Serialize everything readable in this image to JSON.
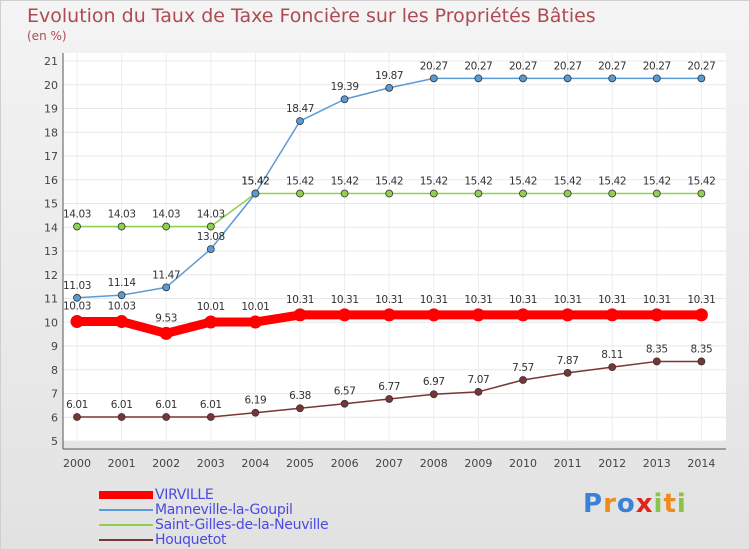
{
  "chart_data": {
    "type": "line",
    "title": "Evolution du Taux de Taxe Foncière sur les Propriétés Bâties",
    "ylabel": "(en %)",
    "xlabel": "",
    "categories": [
      "2000",
      "2001",
      "2002",
      "2003",
      "2004",
      "2005",
      "2006",
      "2007",
      "2008",
      "2009",
      "2010",
      "2011",
      "2012",
      "2013",
      "2014"
    ],
    "ylim": [
      5,
      21
    ],
    "yticks": [
      "5",
      "6",
      "7",
      "8",
      "9",
      "10",
      "11",
      "12",
      "13",
      "14",
      "15",
      "16",
      "17",
      "18",
      "19",
      "20",
      "21"
    ],
    "series": [
      {
        "name": "VIRVILLE",
        "color": "#ff0000",
        "values": [
          10.03,
          10.03,
          9.53,
          10.01,
          10.01,
          10.31,
          10.31,
          10.31,
          10.31,
          10.31,
          10.31,
          10.31,
          10.31,
          10.31,
          10.31
        ],
        "labels": [
          "10.03",
          "10.03",
          "9.53",
          "10.01",
          "10.01",
          "10.31",
          "10.31",
          "10.31",
          "10.31",
          "10.31",
          "10.31",
          "10.31",
          "10.31",
          "10.31",
          "10.31"
        ]
      },
      {
        "name": "Manneville-la-Goupil",
        "color": "#5b9bd5",
        "values": [
          11.03,
          11.14,
          11.47,
          13.08,
          15.42,
          18.47,
          19.39,
          19.87,
          20.27,
          20.27,
          20.27,
          20.27,
          20.27,
          20.27,
          20.27
        ],
        "labels": [
          "11.03",
          "11.14",
          "11.47",
          "13.08",
          "15.42",
          "18.47",
          "19.39",
          "19.87",
          "20.27",
          "20.27",
          "20.27",
          "20.27",
          "20.27",
          "20.27",
          "20.27"
        ]
      },
      {
        "name": "Saint-Gilles-de-la-Neuville",
        "color": "#8fd14f",
        "values": [
          14.03,
          14.03,
          14.03,
          14.03,
          15.42,
          15.42,
          15.42,
          15.42,
          15.42,
          15.42,
          15.42,
          15.42,
          15.42,
          15.42,
          15.42
        ],
        "labels": [
          "14.03",
          "14.03",
          "14.03",
          "14.03",
          "15.42",
          "15.42",
          "15.42",
          "15.42",
          "15.42",
          "15.42",
          "15.42",
          "15.42",
          "15.42",
          "15.42",
          "15.42"
        ]
      },
      {
        "name": "Houquetot",
        "color": "#7b3535",
        "values": [
          6.01,
          6.01,
          6.01,
          6.01,
          6.19,
          6.38,
          6.57,
          6.77,
          6.97,
          7.07,
          7.57,
          7.87,
          8.11,
          8.35,
          8.35
        ],
        "labels": [
          "6.01",
          "6.01",
          "6.01",
          "6.01",
          "6.19",
          "6.38",
          "6.57",
          "6.77",
          "6.97",
          "7.07",
          "7.57",
          "7.87",
          "8.11",
          "8.35",
          "8.35"
        ]
      }
    ]
  },
  "legend": [
    {
      "label": "VIRVILLE",
      "color": "#ff0000"
    },
    {
      "label": "Manneville-la-Goupil",
      "color": "#5b9bd5"
    },
    {
      "label": "Saint-Gilles-de-la-Neuville",
      "color": "#8fd14f"
    },
    {
      "label": "Houquetot",
      "color": "#7b3535"
    }
  ],
  "logo": {
    "text": "Proxiti",
    "letters": [
      "P",
      "r",
      "o",
      "x",
      "i",
      "t",
      "i"
    ],
    "colors": [
      "#3b82d6",
      "#f08a1c",
      "#3b82d6",
      "#e0241c",
      "#8bc34a",
      "#f08a1c",
      "#8bc34a"
    ]
  }
}
